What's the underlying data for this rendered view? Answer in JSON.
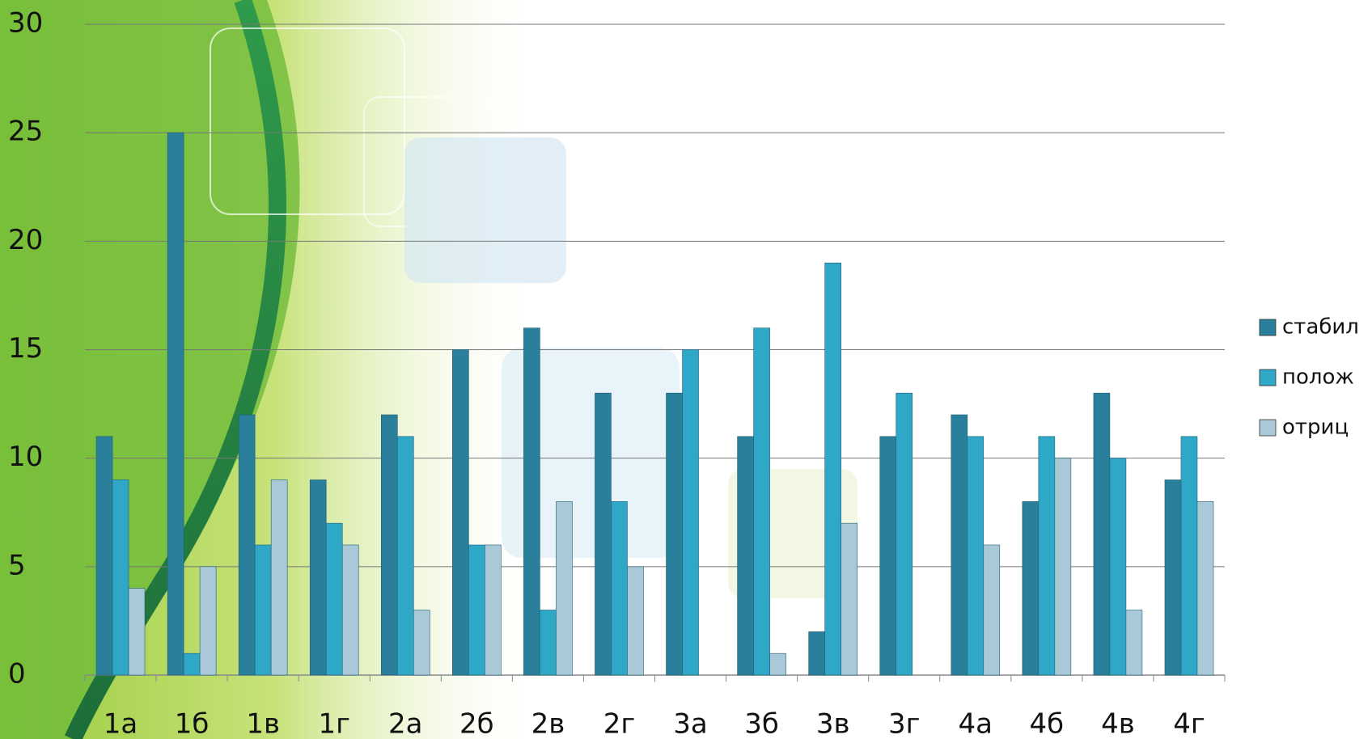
{
  "chart_data": {
    "type": "bar",
    "categories": [
      "1а",
      "1б",
      "1в",
      "1г",
      "2а",
      "2б",
      "2в",
      "2г",
      "3а",
      "3б",
      "3в",
      "3г",
      "4а",
      "4б",
      "4в",
      "4г"
    ],
    "series": [
      {
        "name": "стабил",
        "color": "#2a7f9a",
        "values": [
          11,
          25,
          12,
          9,
          12,
          15,
          16,
          13,
          13,
          11,
          2,
          11,
          12,
          8,
          13,
          9
        ]
      },
      {
        "name": "полож",
        "color": "#2fa8c8",
        "values": [
          9,
          1,
          6,
          7,
          11,
          6,
          3,
          8,
          15,
          16,
          19,
          13,
          11,
          11,
          10,
          11
        ]
      },
      {
        "name": "отриц",
        "color": "#a9c9d8",
        "values": [
          4,
          5,
          9,
          6,
          3,
          6,
          8,
          5,
          0,
          1,
          7,
          0,
          6,
          10,
          3,
          8
        ]
      }
    ],
    "ylim": [
      0,
      30
    ],
    "yticks": [
      0,
      5,
      10,
      15,
      20,
      25,
      30
    ],
    "grid": true,
    "legend": "right"
  }
}
